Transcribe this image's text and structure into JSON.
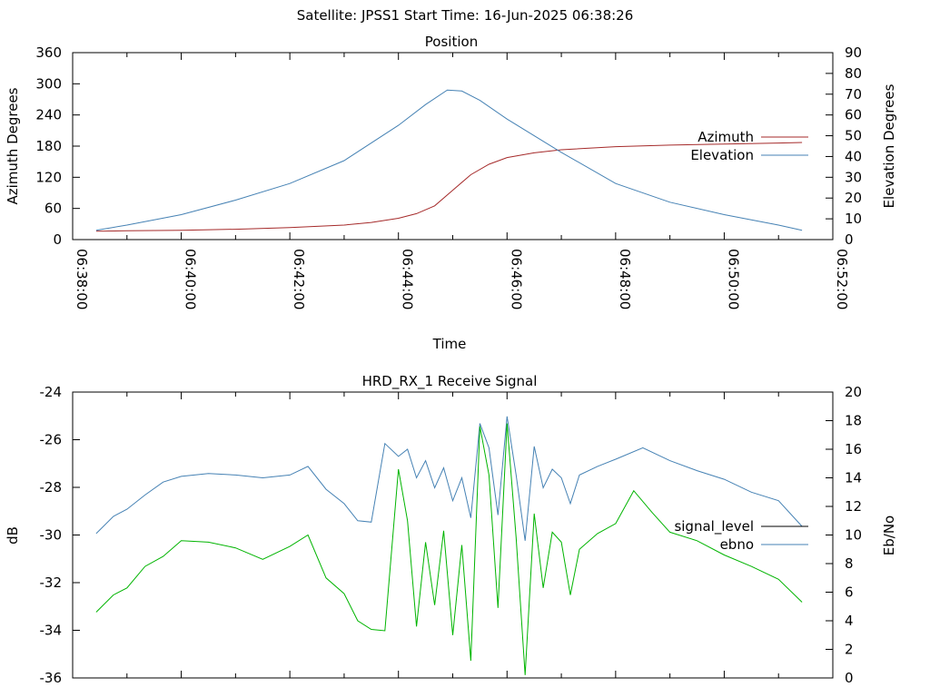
{
  "header": {
    "title": "Satellite: JPSS1    Start Time: 16-Jun-2025 06:38:26"
  },
  "chart_data": [
    {
      "type": "line",
      "title": "Position",
      "xlabel": "Time",
      "ylabel": "Azimuth Degrees",
      "y2label": "Elevation Degrees",
      "x_ticks": [
        "06:38:00",
        "06:40:00",
        "06:42:00",
        "06:44:00",
        "06:46:00",
        "06:48:00",
        "06:50:00",
        "06:52:00"
      ],
      "xlim": [
        "06:38:00",
        "06:52:00"
      ],
      "ylim": [
        0,
        360
      ],
      "y_ticks": [
        0,
        60,
        120,
        180,
        240,
        300,
        360
      ],
      "y2lim": [
        0,
        90
      ],
      "y2_ticks": [
        0,
        10,
        20,
        30,
        40,
        50,
        60,
        70,
        80,
        90
      ],
      "grid": false,
      "legend": "right",
      "series": [
        {
          "name": "Azimuth",
          "axis": "y",
          "color": "#a52a2a",
          "points": [
            [
              "06:38:26",
              16
            ],
            [
              "06:39:00",
              17
            ],
            [
              "06:40:00",
              18
            ],
            [
              "06:41:00",
              20
            ],
            [
              "06:42:00",
              23
            ],
            [
              "06:43:00",
              28
            ],
            [
              "06:43:30",
              33
            ],
            [
              "06:44:00",
              41
            ],
            [
              "06:44:20",
              50
            ],
            [
              "06:44:40",
              65
            ],
            [
              "06:45:00",
              95
            ],
            [
              "06:45:20",
              125
            ],
            [
              "06:45:40",
              145
            ],
            [
              "06:46:00",
              158
            ],
            [
              "06:46:30",
              167
            ],
            [
              "06:47:00",
              173
            ],
            [
              "06:48:00",
              179
            ],
            [
              "06:49:00",
              182
            ],
            [
              "06:50:00",
              184
            ],
            [
              "06:51:00",
              186
            ],
            [
              "06:51:26",
              187
            ]
          ]
        },
        {
          "name": "Elevation",
          "axis": "y2",
          "color": "#4682b4",
          "points": [
            [
              "06:38:26",
              4.5
            ],
            [
              "06:39:00",
              7
            ],
            [
              "06:40:00",
              12
            ],
            [
              "06:41:00",
              19
            ],
            [
              "06:42:00",
              27
            ],
            [
              "06:43:00",
              38
            ],
            [
              "06:44:00",
              55
            ],
            [
              "06:44:30",
              65
            ],
            [
              "06:44:54",
              72
            ],
            [
              "06:45:10",
              71.5
            ],
            [
              "06:45:30",
              67
            ],
            [
              "06:46:00",
              58
            ],
            [
              "06:46:30",
              50
            ],
            [
              "06:47:00",
              42
            ],
            [
              "06:48:00",
              27
            ],
            [
              "06:49:00",
              18
            ],
            [
              "06:50:00",
              12
            ],
            [
              "06:51:00",
              7
            ],
            [
              "06:51:26",
              4.5
            ]
          ]
        }
      ]
    },
    {
      "type": "line",
      "title": "HRD_RX_1 Receive Signal",
      "xlabel": "",
      "ylabel": "dB",
      "y2label": "Eb/No",
      "xlim": [
        "06:38:00",
        "06:52:00"
      ],
      "ylim": [
        -36,
        -24
      ],
      "y_ticks": [
        -36,
        -34,
        -32,
        -30,
        -28,
        -26,
        -24
      ],
      "y2lim": [
        0,
        20
      ],
      "y2_ticks": [
        0,
        2,
        4,
        6,
        8,
        10,
        12,
        14,
        16,
        18,
        20
      ],
      "grid": false,
      "legend": "right",
      "series": [
        {
          "name": "signal_level",
          "axis": "y",
          "color": "#000000",
          "legend_only": true,
          "points": []
        },
        {
          "name": "ebno",
          "axis": "y2",
          "color": "#4682b4",
          "points": [
            [
              "06:38:26",
              10.1
            ],
            [
              "06:38:45",
              11.3
            ],
            [
              "06:39:00",
              11.8
            ],
            [
              "06:39:20",
              12.8
            ],
            [
              "06:39:40",
              13.7
            ],
            [
              "06:40:00",
              14.1
            ],
            [
              "06:40:30",
              14.3
            ],
            [
              "06:41:00",
              14.2
            ],
            [
              "06:41:30",
              14.0
            ],
            [
              "06:42:00",
              14.2
            ],
            [
              "06:42:20",
              14.8
            ],
            [
              "06:42:40",
              13.2
            ],
            [
              "06:43:00",
              12.2
            ],
            [
              "06:43:15",
              11.0
            ],
            [
              "06:43:30",
              10.9
            ],
            [
              "06:43:45",
              16.4
            ],
            [
              "06:44:00",
              15.5
            ],
            [
              "06:44:10",
              16.0
            ],
            [
              "06:44:20",
              14.0
            ],
            [
              "06:44:30",
              15.2
            ],
            [
              "06:44:40",
              13.3
            ],
            [
              "06:44:50",
              14.7
            ],
            [
              "06:45:00",
              12.4
            ],
            [
              "06:45:10",
              14.0
            ],
            [
              "06:45:20",
              11.2
            ],
            [
              "06:45:30",
              17.8
            ],
            [
              "06:45:40",
              16.1
            ],
            [
              "06:45:50",
              11.4
            ],
            [
              "06:46:00",
              18.3
            ],
            [
              "06:46:10",
              14.2
            ],
            [
              "06:46:20",
              9.6
            ],
            [
              "06:46:30",
              16.2
            ],
            [
              "06:46:40",
              13.3
            ],
            [
              "06:46:50",
              14.6
            ],
            [
              "06:47:00",
              14.0
            ],
            [
              "06:47:10",
              12.2
            ],
            [
              "06:47:20",
              14.2
            ],
            [
              "06:47:40",
              14.8
            ],
            [
              "06:48:00",
              15.3
            ],
            [
              "06:48:30",
              16.1
            ],
            [
              "06:49:00",
              15.2
            ],
            [
              "06:49:30",
              14.5
            ],
            [
              "06:50:00",
              13.9
            ],
            [
              "06:50:30",
              13.0
            ],
            [
              "06:51:00",
              12.4
            ],
            [
              "06:51:26",
              10.6
            ]
          ]
        },
        {
          "name": "",
          "axis": "y2",
          "color": "#00b400",
          "points": [
            [
              "06:38:26",
              4.6
            ],
            [
              "06:38:45",
              5.8
            ],
            [
              "06:39:00",
              6.3
            ],
            [
              "06:39:20",
              7.8
            ],
            [
              "06:39:40",
              8.5
            ],
            [
              "06:40:00",
              9.6
            ],
            [
              "06:40:30",
              9.5
            ],
            [
              "06:41:00",
              9.1
            ],
            [
              "06:41:30",
              8.3
            ],
            [
              "06:42:00",
              9.2
            ],
            [
              "06:42:20",
              10.0
            ],
            [
              "06:42:40",
              7.0
            ],
            [
              "06:43:00",
              5.9
            ],
            [
              "06:43:15",
              4.0
            ],
            [
              "06:43:30",
              3.4
            ],
            [
              "06:43:45",
              3.3
            ],
            [
              "06:44:00",
              14.6
            ],
            [
              "06:44:10",
              11.0
            ],
            [
              "06:44:20",
              3.6
            ],
            [
              "06:44:30",
              9.5
            ],
            [
              "06:44:40",
              5.1
            ],
            [
              "06:44:50",
              10.3
            ],
            [
              "06:45:00",
              3.0
            ],
            [
              "06:45:10",
              9.3
            ],
            [
              "06:45:20",
              1.2
            ],
            [
              "06:45:30",
              17.6
            ],
            [
              "06:45:40",
              14.2
            ],
            [
              "06:45:50",
              4.9
            ],
            [
              "06:46:00",
              17.8
            ],
            [
              "06:46:10",
              9.8
            ],
            [
              "06:46:20",
              0.2
            ],
            [
              "06:46:30",
              11.5
            ],
            [
              "06:46:40",
              6.3
            ],
            [
              "06:46:50",
              10.2
            ],
            [
              "06:47:00",
              9.5
            ],
            [
              "06:47:10",
              5.8
            ],
            [
              "06:47:20",
              9.0
            ],
            [
              "06:47:40",
              10.1
            ],
            [
              "06:48:00",
              10.8
            ],
            [
              "06:48:20",
              13.1
            ],
            [
              "06:48:40",
              11.6
            ],
            [
              "06:49:00",
              10.2
            ],
            [
              "06:49:30",
              9.6
            ],
            [
              "06:50:00",
              8.6
            ],
            [
              "06:50:30",
              7.8
            ],
            [
              "06:51:00",
              6.9
            ],
            [
              "06:51:26",
              5.3
            ]
          ]
        }
      ]
    }
  ]
}
